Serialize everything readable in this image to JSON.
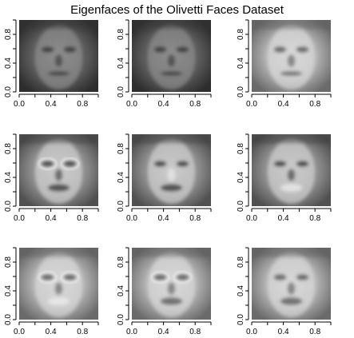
{
  "chart_data": {
    "type": "heatmap",
    "title": "Eigenfaces of the Olivetti Faces Dataset",
    "grid": false,
    "layout": "3x3 grid of grayscale image panels",
    "colormap": "grayscale",
    "panels": [
      {
        "name": "",
        "xlim": [
          0,
          1
        ],
        "ylim": [
          0,
          1
        ],
        "xticks": [
          "0.0",
          "0.4",
          "0.8"
        ],
        "yticks": [
          "0.0",
          "0.4",
          "0.8"
        ]
      },
      {
        "name": "",
        "xlim": [
          0,
          1
        ],
        "ylim": [
          0,
          1
        ],
        "xticks": [
          "0.0",
          "0.4",
          "0.8"
        ],
        "yticks": [
          "0.0",
          "0.4",
          "0.8"
        ]
      },
      {
        "name": "",
        "xlim": [
          0,
          1
        ],
        "ylim": [
          0,
          1
        ],
        "xticks": [
          "0.0",
          "0.4",
          "0.8"
        ],
        "yticks": [
          "0.0",
          "0.4",
          "0.8"
        ]
      },
      {
        "name": "",
        "xlim": [
          0,
          1
        ],
        "ylim": [
          0,
          1
        ],
        "xticks": [
          "0.0",
          "0.4",
          "0.8"
        ],
        "yticks": [
          "0.0",
          "0.4",
          "0.8"
        ]
      },
      {
        "name": "",
        "xlim": [
          0,
          1
        ],
        "ylim": [
          0,
          1
        ],
        "xticks": [
          "0.0",
          "0.4",
          "0.8"
        ],
        "yticks": [
          "0.0",
          "0.4",
          "0.8"
        ]
      },
      {
        "name": "",
        "xlim": [
          0,
          1
        ],
        "ylim": [
          0,
          1
        ],
        "xticks": [
          "0.0",
          "0.4",
          "0.8"
        ],
        "yticks": [
          "0.0",
          "0.4",
          "0.8"
        ]
      },
      {
        "name": "",
        "xlim": [
          0,
          1
        ],
        "ylim": [
          0,
          1
        ],
        "xticks": [
          "0.0",
          "0.4",
          "0.8"
        ],
        "yticks": [
          "0.0",
          "0.4",
          "0.8"
        ]
      },
      {
        "name": "",
        "xlim": [
          0,
          1
        ],
        "ylim": [
          0,
          1
        ],
        "xticks": [
          "0.0",
          "0.4",
          "0.8"
        ],
        "yticks": [
          "0.0",
          "0.4",
          "0.8"
        ]
      },
      {
        "name": "",
        "xlim": [
          0,
          1
        ],
        "ylim": [
          0,
          1
        ],
        "xticks": [
          "0.0",
          "0.4",
          "0.8"
        ],
        "yticks": [
          "0.0",
          "0.4",
          "0.8"
        ]
      }
    ]
  },
  "colors": {
    "background": "#ffffff",
    "axis": "#000000",
    "ink_dark": "#2a2a2a",
    "ink_mid": "#8a8a8a",
    "ink_light": "#d8d8d8"
  }
}
